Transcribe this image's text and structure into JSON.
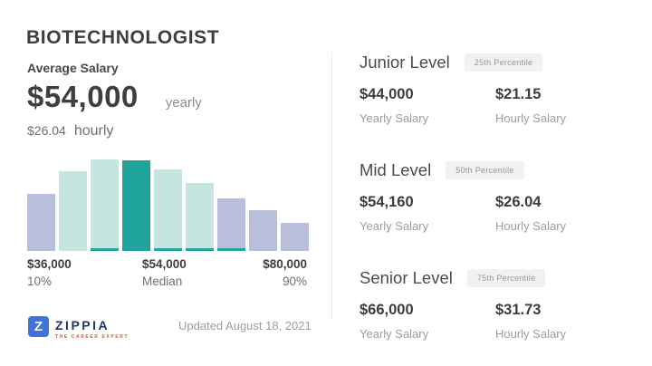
{
  "page": {
    "title": "BIOTECHNOLOGIST"
  },
  "summary": {
    "label": "Average Salary",
    "yearly_value": "$54,000",
    "yearly_unit": "yearly",
    "hourly_value": "$26.04",
    "hourly_unit": "hourly"
  },
  "chart_data": {
    "type": "bar",
    "title": "Salary distribution histogram",
    "x_range_amounts": [
      "$36,000",
      "$80,000"
    ],
    "bars": [
      {
        "height_pct": 62,
        "color": "bar_lavender",
        "base_strip": false
      },
      {
        "height_pct": 87,
        "color": "bar_teal_light",
        "base_strip": false
      },
      {
        "height_pct": 100,
        "color": "bar_teal_light",
        "base_strip": true
      },
      {
        "height_pct": 99,
        "color": "bar_teal_dark",
        "base_strip": false
      },
      {
        "height_pct": 89,
        "color": "bar_teal_light",
        "base_strip": true
      },
      {
        "height_pct": 74,
        "color": "bar_teal_light",
        "base_strip": true
      },
      {
        "height_pct": 57,
        "color": "bar_lavender",
        "base_strip": true
      },
      {
        "height_pct": 45,
        "color": "bar_lavender",
        "base_strip": false
      },
      {
        "height_pct": 31,
        "color": "bar_lavender",
        "base_strip": false
      }
    ],
    "x_ticks": [
      {
        "amount": "$36,000",
        "sub": "10%"
      },
      {
        "amount": "$54,000",
        "sub": "Median"
      },
      {
        "amount": "$80,000",
        "sub": "90%"
      }
    ],
    "legend": "none",
    "grid": "off"
  },
  "levels": [
    {
      "name": "Junior Level",
      "badge": "25th Percentile",
      "yearly": "$44,000",
      "yearly_label": "Yearly Salary",
      "hourly": "$21.15",
      "hourly_label": "Hourly Salary"
    },
    {
      "name": "Mid Level",
      "badge": "50th Percentile",
      "yearly": "$54,160",
      "yearly_label": "Yearly Salary",
      "hourly": "$26.04",
      "hourly_label": "Hourly Salary"
    },
    {
      "name": "Senior Level",
      "badge": "75th Percentile",
      "yearly": "$66,000",
      "yearly_label": "Yearly Salary",
      "hourly": "$31.73",
      "hourly_label": "Hourly Salary"
    }
  ],
  "footer": {
    "logo_letter": "Z",
    "logo_text": "ZIPPIA",
    "logo_tagline": "THE CAREER EXPERT",
    "updated": "Updated August 18, 2021"
  },
  "colors": {
    "bar_teal_dark": "#20a39a",
    "bar_teal_light": "#c6e4e0",
    "bar_lavender": "#b9bfdb",
    "strip": "#23a79d",
    "badge_bg": "#f1f1f1",
    "badge_text": "#979797",
    "logo_blue": "#4273d8",
    "logo_navy": "#1e3766",
    "tagline_orange": "#cf5741"
  }
}
